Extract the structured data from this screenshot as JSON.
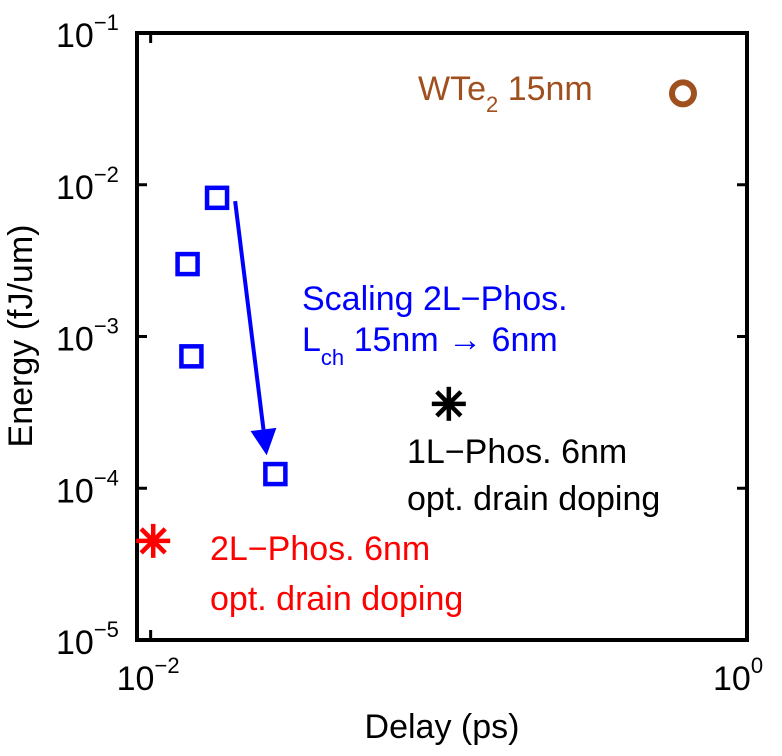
{
  "chart_data": {
    "type": "scatter",
    "title": "",
    "xlabel": "Delay (ps)",
    "ylabel": "Energy (fJ/um)",
    "xscale": "log",
    "yscale": "log",
    "xlim": [
      0.009,
      1.0
    ],
    "ylim": [
      1e-05,
      0.1
    ],
    "x_ticks": [
      {
        "value": 0.01,
        "base": "10",
        "exp": "−2"
      },
      {
        "value": 1.0,
        "base": "10",
        "exp": "0"
      }
    ],
    "y_ticks": [
      {
        "value": 1e-05,
        "base": "10",
        "exp": "−5"
      },
      {
        "value": 0.0001,
        "base": "10",
        "exp": "−4"
      },
      {
        "value": 0.001,
        "base": "10",
        "exp": "−3"
      },
      {
        "value": 0.01,
        "base": "10",
        "exp": "−2"
      },
      {
        "value": 0.1,
        "base": "10",
        "exp": "−1"
      }
    ],
    "series": [
      {
        "name": "Scaling 2L-Phos.",
        "marker": "square",
        "color": "#0000ff",
        "points": [
          {
            "x": 0.0167,
            "y": 0.0082
          },
          {
            "x": 0.0133,
            "y": 0.003
          },
          {
            "x": 0.0137,
            "y": 0.00074
          },
          {
            "x": 0.0262,
            "y": 0.000124
          }
        ]
      },
      {
        "name": "1L-Phos. 6nm opt. drain doping",
        "marker": "asterisk",
        "color": "#000000",
        "points": [
          {
            "x": 0.1,
            "y": 0.00036
          }
        ]
      },
      {
        "name": "2L-Phos. 6nm opt. drain doping",
        "marker": "asterisk",
        "color": "#ff0000",
        "points": [
          {
            "x": 0.0102,
            "y": 4.5e-05
          }
        ]
      },
      {
        "name": "WTe2 15nm",
        "marker": "circle",
        "color": "#a0501e",
        "points": [
          {
            "x": 0.61,
            "y": 0.04
          }
        ]
      }
    ],
    "arrow": {
      "from": {
        "x": 0.0192,
        "y": 0.0078
      },
      "to": {
        "x": 0.0245,
        "y": 0.000165
      },
      "color": "#0000ff"
    },
    "annotations": {
      "wte2": {
        "main": "WTe",
        "sub": "2",
        "rest": " 15nm",
        "color": "#a0501e"
      },
      "scaling": {
        "line1": "Scaling 2L−Phos.",
        "line2_main": "L",
        "line2_sub": "ch",
        "line2_rest": " 15nm → 6nm",
        "color": "#0000ff"
      },
      "one_l": {
        "line1": "1L−Phos.  6nm",
        "line2": "opt. drain doping",
        "color": "#000000"
      },
      "two_l": {
        "line1": "2L−Phos. 6nm",
        "line2": "opt. drain doping",
        "color": "#ff0000"
      }
    }
  }
}
